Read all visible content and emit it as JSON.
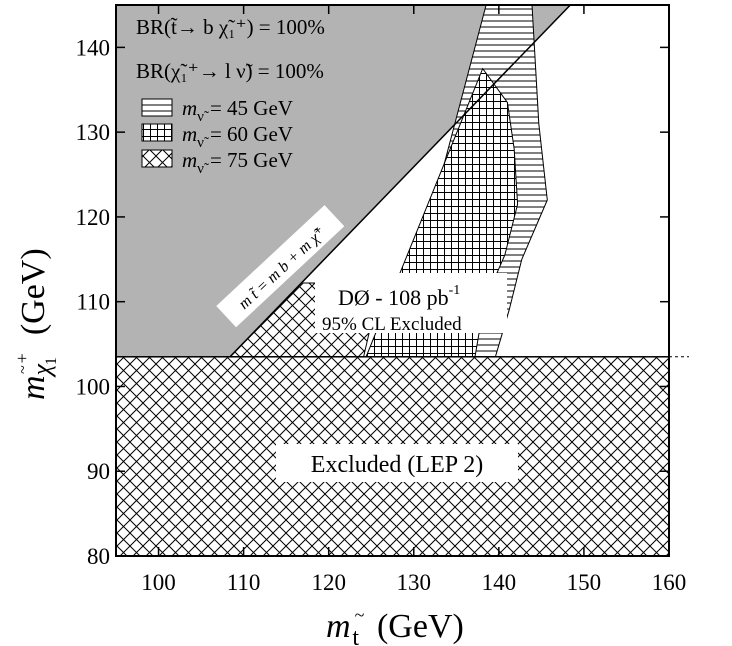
{
  "chart_data": {
    "type": "area",
    "xlabel": "m t̃ (GeV)",
    "ylabel": "m χ̃₁⁺ (GeV)",
    "xlabel_parts": {
      "m": "m",
      "sub": "t",
      "tilde": "~",
      "unit": "(GeV)"
    },
    "ylabel_parts": {
      "m": "m",
      "sub": "χ",
      "tilde": "~",
      "sup": "+",
      "subsub": "1",
      "unit": "(GeV)"
    },
    "xlim": [
      95,
      160
    ],
    "ylim": [
      80,
      145
    ],
    "xticks": [
      100,
      110,
      120,
      130,
      140,
      150,
      160
    ],
    "yticks": [
      80,
      90,
      100,
      110,
      120,
      130,
      140
    ],
    "grid": false,
    "legend_position": "top-left",
    "legend_header": [
      "BR(t̃→ b χ̃₁⁺) = 100%",
      "BR(χ̃₁⁺→ l ν̃) = 100%"
    ],
    "series": [
      {
        "name": "m ν̃ = 45 GeV",
        "legend_label": "m",
        "legend_sub": "ν̃",
        "legend_value": "= 45 GeV",
        "hatch": "horizontal",
        "polygon": [
          [
            127.6,
            103.5
          ],
          [
            139.6,
            103.5
          ],
          [
            141.2,
            109
          ],
          [
            142.7,
            115
          ],
          [
            145.7,
            122
          ],
          [
            144.7,
            131
          ],
          [
            143.9,
            145
          ],
          [
            138.5,
            145
          ]
        ]
      },
      {
        "name": "m ν̃ = 60 GeV",
        "legend_label": "m",
        "legend_sub": "ν̃",
        "legend_value": "= 60 GeV",
        "hatch": "grid",
        "polygon": [
          [
            124.4,
            103.5
          ],
          [
            137.2,
            103.5
          ],
          [
            138.3,
            110
          ],
          [
            140.7,
            115.5
          ],
          [
            142.2,
            121.5
          ],
          [
            141.8,
            128
          ],
          [
            141.0,
            133.5
          ],
          [
            138.1,
            137.5
          ]
        ]
      },
      {
        "name": "m ν̃ = 75 GeV",
        "legend_label": "m",
        "legend_sub": "ν̃",
        "legend_value": "= 75 GeV",
        "hatch": "crosshatch",
        "polygon": [
          [
            108.4,
            103.5
          ],
          [
            124.1,
            103.5
          ],
          [
            126.1,
            112.2
          ],
          [
            117.0,
            112.2
          ]
        ]
      }
    ],
    "kinematic_limit": {
      "label": "m t̃ = m b + m χ̃⁺",
      "points": [
        [
          108.4,
          103.5
        ],
        [
          148.4,
          145
        ]
      ]
    },
    "lep_excluded": {
      "label": "Excluded (LEP 2)",
      "y_max": 103.5,
      "hatch": "crosshatch"
    },
    "annotations": {
      "experiment": "DØ - 108 pb",
      "experiment_sup": "-1",
      "cl_text": "95% CL Excluded"
    },
    "colors": {
      "forbidden_region": "#b3b3b3",
      "hatch": "#000000",
      "background": "#ffffff"
    }
  }
}
